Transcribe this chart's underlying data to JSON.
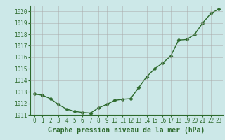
{
  "x": [
    0,
    1,
    2,
    3,
    4,
    5,
    6,
    7,
    8,
    9,
    10,
    11,
    12,
    13,
    14,
    15,
    16,
    17,
    18,
    19,
    20,
    21,
    22,
    23
  ],
  "y": [
    1012.8,
    1012.7,
    1012.4,
    1011.9,
    1011.5,
    1011.3,
    1011.2,
    1011.15,
    1011.6,
    1011.9,
    1012.25,
    1012.35,
    1012.4,
    1013.35,
    1014.3,
    1015.0,
    1015.5,
    1016.1,
    1017.5,
    1017.55,
    1018.0,
    1019.0,
    1019.8,
    1020.2
  ],
  "line_color": "#2d6a2d",
  "marker": "D",
  "marker_size": 2.5,
  "line_width": 1.0,
  "bg_color": "#cce8e8",
  "grid_color": "#aaaaaa",
  "xlabel": "Graphe pression niveau de la mer (hPa)",
  "xlabel_color": "#2d6a2d",
  "xlabel_fontsize": 7,
  "tick_color": "#2d6a2d",
  "tick_fontsize": 5.5,
  "ylim": [
    1011.0,
    1020.5
  ],
  "xlim": [
    -0.5,
    23.5
  ],
  "yticks": [
    1011,
    1012,
    1013,
    1014,
    1015,
    1016,
    1017,
    1018,
    1019,
    1020
  ],
  "xticks": [
    0,
    1,
    2,
    3,
    4,
    5,
    6,
    7,
    8,
    9,
    10,
    11,
    12,
    13,
    14,
    15,
    16,
    17,
    18,
    19,
    20,
    21,
    22,
    23
  ]
}
